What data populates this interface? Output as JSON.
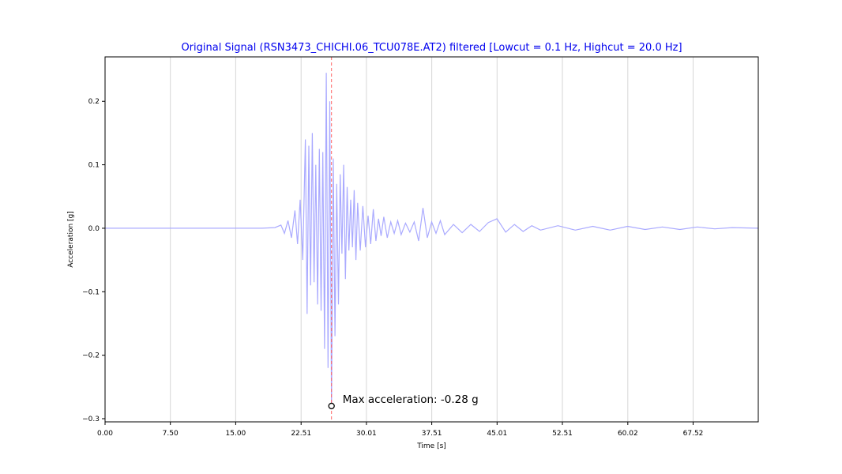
{
  "chart_data": {
    "type": "line",
    "title": "Original Signal (RSN3473_CHICHI.06_TCU078E.AT2) filtered [Lowcut = 0.1 Hz, Highcut = 20.0 Hz]",
    "xlabel": "Time [s]",
    "ylabel": "Acceleration [g]",
    "xlim": [
      0,
      75.0
    ],
    "ylim": [
      -0.305,
      0.27
    ],
    "x_ticks": [
      0,
      7.5,
      15.0,
      22.51,
      30.01,
      37.51,
      45.01,
      52.51,
      60.02,
      67.52
    ],
    "x_tick_labels": [
      "0.00",
      "7.50",
      "15.00",
      "22.51",
      "30.01",
      "37.51",
      "45.01",
      "52.51",
      "60.02",
      "67.52"
    ],
    "y_ticks": [
      0.2,
      0.1,
      0.0,
      -0.1,
      -0.2,
      -0.3
    ],
    "y_tick_labels": [
      "0.2",
      "0.1",
      "0.0",
      "−0.1",
      "−0.2",
      "−0.3"
    ],
    "grid": "vertical",
    "series": [
      {
        "color": "#aaaaff",
        "x": [
          0,
          5,
          10,
          15,
          18,
          19.5,
          20.2,
          20.6,
          21.0,
          21.4,
          21.8,
          22.1,
          22.4,
          22.7,
          23.0,
          23.2,
          23.4,
          23.6,
          23.8,
          24.0,
          24.2,
          24.4,
          24.6,
          24.8,
          25.0,
          25.2,
          25.4,
          25.6,
          25.8,
          26.0,
          26.2,
          26.4,
          26.6,
          26.8,
          27.0,
          27.2,
          27.4,
          27.6,
          27.8,
          28.0,
          28.2,
          28.4,
          28.6,
          28.8,
          29.0,
          29.3,
          29.6,
          29.9,
          30.2,
          30.5,
          30.8,
          31.1,
          31.4,
          31.7,
          32.0,
          32.4,
          32.8,
          33.2,
          33.6,
          34.0,
          34.5,
          35.0,
          35.5,
          36.0,
          36.5,
          37.0,
          37.5,
          38.0,
          38.5,
          39.0,
          40.0,
          41.0,
          42.0,
          43.0,
          44.0,
          45.0,
          46.0,
          47.0,
          48.0,
          49.0,
          50.0,
          52.0,
          54.0,
          56.0,
          58.0,
          60.0,
          62.0,
          64.0,
          66.0,
          68.0,
          70.0,
          72.0,
          75.0
        ],
        "y": [
          0.0,
          0.0,
          0.0,
          0.0,
          0.0,
          0.001,
          0.005,
          -0.008,
          0.012,
          -0.015,
          0.028,
          -0.025,
          0.045,
          -0.05,
          0.14,
          -0.135,
          0.13,
          -0.09,
          0.15,
          -0.085,
          0.1,
          -0.12,
          0.125,
          -0.13,
          0.12,
          -0.19,
          0.245,
          -0.22,
          0.2,
          -0.28,
          0.11,
          -0.17,
          0.07,
          -0.12,
          0.085,
          -0.04,
          0.1,
          -0.08,
          0.065,
          -0.035,
          0.045,
          -0.03,
          0.06,
          -0.05,
          0.04,
          -0.035,
          0.035,
          -0.03,
          0.02,
          -0.025,
          0.03,
          -0.02,
          0.015,
          -0.012,
          0.018,
          -0.015,
          0.01,
          -0.008,
          0.012,
          -0.01,
          0.008,
          -0.006,
          0.01,
          -0.02,
          0.032,
          -0.015,
          0.01,
          -0.008,
          0.012,
          -0.01,
          0.006,
          -0.007,
          0.006,
          -0.005,
          0.009,
          0.015,
          -0.006,
          0.006,
          -0.005,
          0.004,
          -0.003,
          0.004,
          -0.003,
          0.003,
          -0.003,
          0.003,
          -0.002,
          0.002,
          -0.002,
          0.002,
          -0.001,
          0.001,
          0.0
        ]
      }
    ],
    "peak_marker": {
      "x": 26.0,
      "y": -0.28,
      "label": "Max acceleration: -0.28 g",
      "line_color": "#ff6666"
    }
  }
}
